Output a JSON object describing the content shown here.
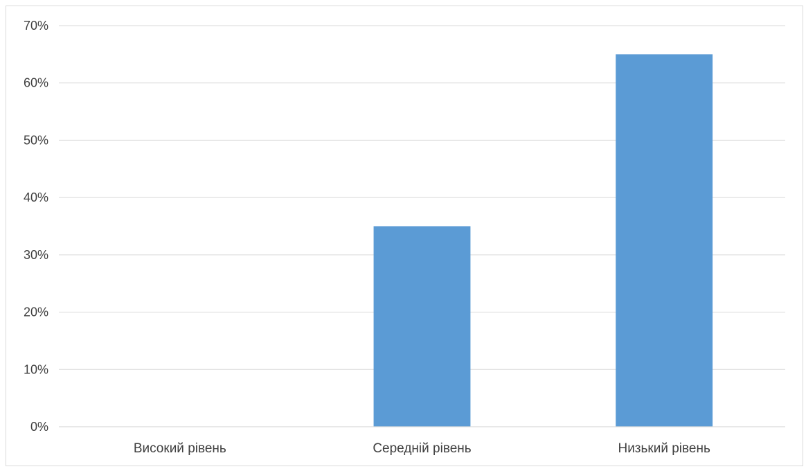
{
  "chart_data": {
    "type": "bar",
    "title": "",
    "xlabel": "",
    "ylabel": "",
    "categories": [
      "Високий рівень",
      "Середній рівень",
      "Низький рівень"
    ],
    "values": [
      0,
      35,
      65
    ],
    "unit": "%",
    "ylim": [
      0,
      70
    ],
    "yticks": [
      0,
      10,
      20,
      30,
      40,
      50,
      60,
      70
    ],
    "ytick_labels": [
      "0%",
      "10%",
      "20%",
      "30%",
      "40%",
      "50%",
      "60%",
      "70%"
    ],
    "grid": true,
    "legend": "none",
    "bar_color": "#5b9bd5"
  }
}
